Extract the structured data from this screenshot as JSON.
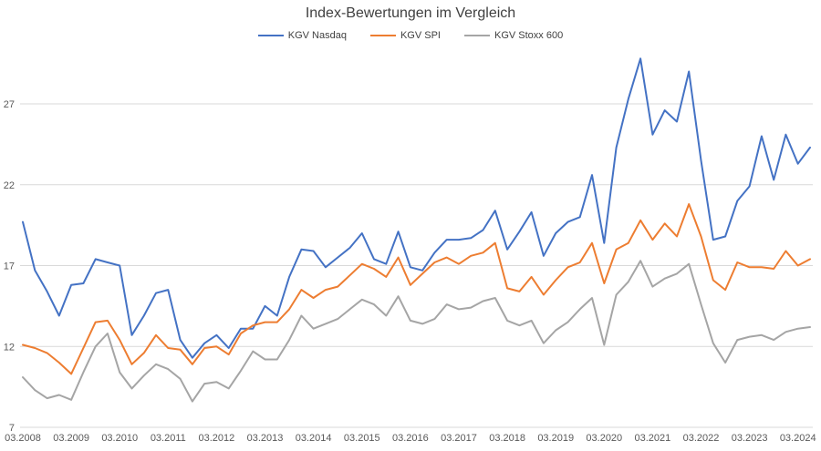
{
  "title": "Index-Bewertungen im Vergleich",
  "colors": {
    "grid": "#D9D9D9",
    "tick_text": "#595959",
    "title_text": "#404040",
    "background": "#FFFFFF"
  },
  "legend": [
    {
      "label": "KGV Nasdaq",
      "color": "#4472C4"
    },
    {
      "label": "KGV SPI",
      "color": "#ED7D31"
    },
    {
      "label": "KGV Stoxx 600",
      "color": "#A5A5A5"
    }
  ],
  "chart_data": {
    "type": "line",
    "title": "Index-Bewertungen im Vergleich",
    "xlabel": "",
    "ylabel": "",
    "grid": true,
    "legend_position": "top",
    "y_ticks": [
      7,
      12,
      17,
      22,
      27
    ],
    "ylim": [
      7,
      30.8
    ],
    "x_tick_labels": [
      "03.2008",
      "03.2009",
      "03.2010",
      "03.2011",
      "03.2012",
      "03.2013",
      "03.2014",
      "03.2015",
      "03.2016",
      "03.2017",
      "03.2018",
      "03.2019",
      "03.2020",
      "03.2021",
      "03.2022",
      "03.2023",
      "03.2024"
    ],
    "categories": [
      "03.2008",
      "06.2008",
      "09.2008",
      "12.2008",
      "03.2009",
      "06.2009",
      "09.2009",
      "12.2009",
      "03.2010",
      "06.2010",
      "09.2010",
      "12.2010",
      "03.2011",
      "06.2011",
      "09.2011",
      "12.2011",
      "03.2012",
      "06.2012",
      "09.2012",
      "12.2012",
      "03.2013",
      "06.2013",
      "09.2013",
      "12.2013",
      "03.2014",
      "06.2014",
      "09.2014",
      "12.2014",
      "03.2015",
      "06.2015",
      "09.2015",
      "12.2015",
      "03.2016",
      "06.2016",
      "09.2016",
      "12.2016",
      "03.2017",
      "06.2017",
      "09.2017",
      "12.2017",
      "03.2018",
      "06.2018",
      "09.2018",
      "12.2018",
      "03.2019",
      "06.2019",
      "09.2019",
      "12.2019",
      "03.2020",
      "06.2020",
      "09.2020",
      "12.2020",
      "03.2021",
      "06.2021",
      "09.2021",
      "12.2021",
      "03.2022",
      "06.2022",
      "09.2022",
      "12.2022",
      "03.2023",
      "06.2023",
      "09.2023",
      "12.2023",
      "03.2024",
      "06.2024"
    ],
    "series": [
      {
        "name": "KGV Nasdaq",
        "color": "#4472C4",
        "values": [
          19.7,
          16.7,
          15.4,
          13.9,
          15.8,
          15.9,
          17.4,
          17.2,
          17.0,
          12.7,
          13.9,
          15.3,
          15.5,
          12.4,
          11.3,
          12.2,
          12.7,
          11.9,
          13.1,
          13.1,
          14.5,
          13.9,
          16.3,
          18.0,
          17.9,
          16.9,
          17.5,
          18.1,
          19.0,
          17.4,
          17.1,
          19.1,
          16.9,
          16.7,
          17.8,
          18.6,
          18.6,
          18.7,
          19.2,
          20.4,
          18.0,
          19.1,
          20.3,
          17.6,
          19.0,
          19.7,
          20.0,
          22.6,
          18.4,
          24.3,
          27.3,
          29.8,
          25.1,
          26.6,
          25.9,
          29.0,
          23.5,
          18.6,
          18.8,
          21.0,
          21.9,
          25.0,
          22.3,
          25.1,
          23.3,
          24.3
        ]
      },
      {
        "name": "KGV SPI",
        "color": "#ED7D31",
        "values": [
          12.1,
          11.9,
          11.6,
          11.0,
          10.3,
          11.9,
          13.5,
          13.6,
          12.4,
          10.9,
          11.6,
          12.7,
          11.9,
          11.8,
          10.9,
          11.9,
          12.0,
          11.5,
          12.8,
          13.3,
          13.5,
          13.5,
          14.3,
          15.5,
          15.0,
          15.5,
          15.7,
          16.4,
          17.1,
          16.8,
          16.3,
          17.5,
          15.8,
          16.5,
          17.2,
          17.5,
          17.1,
          17.6,
          17.8,
          18.4,
          15.6,
          15.4,
          16.3,
          15.2,
          16.1,
          16.9,
          17.2,
          18.4,
          15.9,
          18.0,
          18.4,
          19.8,
          18.6,
          19.6,
          18.8,
          20.8,
          18.8,
          16.1,
          15.5,
          17.2,
          16.9,
          16.9,
          16.8,
          17.9,
          17.0,
          17.4
        ]
      },
      {
        "name": "KGV Stoxx 600",
        "color": "#A5A5A5",
        "values": [
          10.1,
          9.3,
          8.8,
          9.0,
          8.7,
          10.4,
          12.0,
          12.8,
          10.4,
          9.4,
          10.2,
          10.9,
          10.6,
          10.0,
          8.6,
          9.7,
          9.8,
          9.4,
          10.5,
          11.7,
          11.2,
          11.2,
          12.4,
          13.9,
          13.1,
          13.4,
          13.7,
          14.3,
          14.9,
          14.6,
          13.9,
          15.1,
          13.6,
          13.4,
          13.7,
          14.6,
          14.3,
          14.4,
          14.8,
          15.0,
          13.6,
          13.3,
          13.6,
          12.2,
          13.0,
          13.5,
          14.3,
          15.0,
          12.1,
          15.2,
          16.0,
          17.3,
          15.7,
          16.2,
          16.5,
          17.1,
          14.6,
          12.2,
          11.0,
          12.4,
          12.6,
          12.7,
          12.4,
          12.9,
          13.1,
          13.2
        ]
      }
    ]
  }
}
